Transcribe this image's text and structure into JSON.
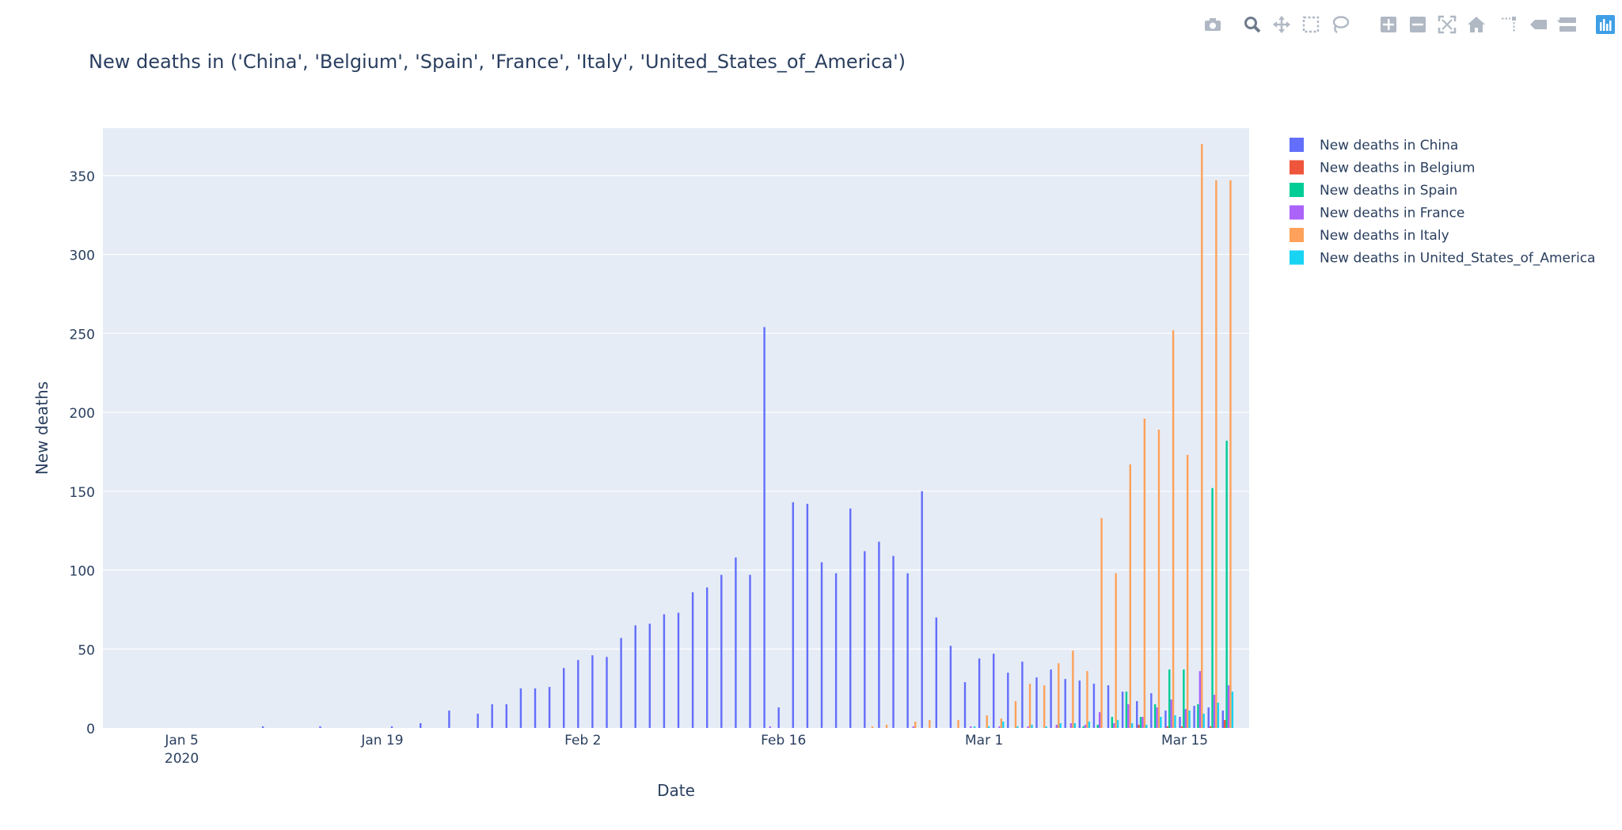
{
  "modebar": {
    "icons": [
      "camera-icon",
      "zoom-icon",
      "pan-icon",
      "box-select-icon",
      "lasso-select-icon",
      "zoom-in-icon",
      "zoom-out-icon",
      "autoscale-icon",
      "reset-axes-icon",
      "spike-lines-icon",
      "hover-closest-icon",
      "hover-compare-icon",
      "plotly-logo-icon"
    ],
    "active": "zoom-icon",
    "color": "#b0b8c4",
    "active_color": "#6e7b8b",
    "logo_color": "#3f9fe6"
  },
  "chart_data": {
    "type": "bar",
    "title": "New deaths in ('China', 'Belgium', 'Spain', 'France', 'Italy', 'United_States_of_America')",
    "xlabel": "Date",
    "ylabel": "New deaths",
    "ylim": [
      0,
      380
    ],
    "yticks": [
      0,
      50,
      100,
      150,
      200,
      250,
      300,
      350
    ],
    "xticks": [
      {
        "date": "2020-01-05",
        "label": "Jan 5",
        "sublabel": "2020"
      },
      {
        "date": "2020-01-19",
        "label": "Jan 19",
        "sublabel": ""
      },
      {
        "date": "2020-02-02",
        "label": "Feb 2",
        "sublabel": ""
      },
      {
        "date": "2020-02-16",
        "label": "Feb 16",
        "sublabel": ""
      },
      {
        "date": "2020-03-01",
        "label": "Mar 1",
        "sublabel": ""
      },
      {
        "date": "2020-03-15",
        "label": "Mar 15",
        "sublabel": ""
      }
    ],
    "xrange": [
      "2019-12-31",
      "2020-03-19"
    ],
    "grid": true,
    "legend_position": "top-right",
    "plot_bgcolor": "#e5ecf6",
    "dates": [
      "2019-12-31",
      "2020-01-01",
      "2020-01-02",
      "2020-01-03",
      "2020-01-04",
      "2020-01-05",
      "2020-01-06",
      "2020-01-07",
      "2020-01-08",
      "2020-01-09",
      "2020-01-10",
      "2020-01-11",
      "2020-01-12",
      "2020-01-13",
      "2020-01-14",
      "2020-01-15",
      "2020-01-16",
      "2020-01-17",
      "2020-01-18",
      "2020-01-19",
      "2020-01-20",
      "2020-01-21",
      "2020-01-22",
      "2020-01-23",
      "2020-01-24",
      "2020-01-25",
      "2020-01-26",
      "2020-01-27",
      "2020-01-28",
      "2020-01-29",
      "2020-01-30",
      "2020-01-31",
      "2020-02-01",
      "2020-02-02",
      "2020-02-03",
      "2020-02-04",
      "2020-02-05",
      "2020-02-06",
      "2020-02-07",
      "2020-02-08",
      "2020-02-09",
      "2020-02-10",
      "2020-02-11",
      "2020-02-12",
      "2020-02-13",
      "2020-02-14",
      "2020-02-15",
      "2020-02-16",
      "2020-02-17",
      "2020-02-18",
      "2020-02-19",
      "2020-02-20",
      "2020-02-21",
      "2020-02-22",
      "2020-02-23",
      "2020-02-24",
      "2020-02-25",
      "2020-02-26",
      "2020-02-27",
      "2020-02-28",
      "2020-02-29",
      "2020-03-01",
      "2020-03-02",
      "2020-03-03",
      "2020-03-04",
      "2020-03-05",
      "2020-03-06",
      "2020-03-07",
      "2020-03-08",
      "2020-03-09",
      "2020-03-10",
      "2020-03-11",
      "2020-03-12",
      "2020-03-13",
      "2020-03-14",
      "2020-03-15",
      "2020-03-16",
      "2020-03-17",
      "2020-03-18"
    ],
    "series": [
      {
        "name": "New deaths in China",
        "color": "#636efa",
        "values": [
          0,
          0,
          0,
          0,
          0,
          0,
          0,
          0,
          0,
          0,
          0,
          1,
          0,
          0,
          0,
          1,
          0,
          0,
          0,
          0,
          1,
          0,
          3,
          0,
          11,
          0,
          9,
          15,
          15,
          25,
          25,
          26,
          38,
          43,
          46,
          45,
          57,
          65,
          66,
          72,
          73,
          86,
          89,
          97,
          108,
          97,
          254,
          13,
          143,
          142,
          105,
          98,
          139,
          112,
          118,
          109,
          98,
          150,
          70,
          52,
          29,
          44,
          47,
          35,
          42,
          32,
          37,
          31,
          30,
          28,
          27,
          23,
          17,
          22,
          11,
          7,
          14,
          13,
          11
        ]
      },
      {
        "name": "New deaths in Belgium",
        "color": "#ef553b",
        "values": [
          0,
          0,
          0,
          0,
          0,
          0,
          0,
          0,
          0,
          0,
          0,
          0,
          0,
          0,
          0,
          0,
          0,
          0,
          0,
          0,
          0,
          0,
          0,
          0,
          0,
          0,
          0,
          0,
          0,
          0,
          0,
          0,
          0,
          0,
          0,
          0,
          0,
          0,
          0,
          0,
          0,
          0,
          0,
          0,
          0,
          0,
          0,
          0,
          0,
          0,
          0,
          0,
          0,
          0,
          0,
          0,
          0,
          0,
          0,
          0,
          0,
          0,
          0,
          0,
          0,
          0,
          0,
          0,
          0,
          0,
          0,
          0,
          2,
          0,
          1,
          1,
          0,
          1,
          5
        ]
      },
      {
        "name": "New deaths in Spain",
        "color": "#00cc96",
        "values": [
          0,
          0,
          0,
          0,
          0,
          0,
          0,
          0,
          0,
          0,
          0,
          0,
          0,
          0,
          0,
          0,
          0,
          0,
          0,
          0,
          0,
          0,
          0,
          0,
          0,
          0,
          0,
          0,
          0,
          0,
          0,
          0,
          0,
          0,
          0,
          0,
          0,
          0,
          0,
          0,
          0,
          0,
          0,
          0,
          0,
          0,
          0,
          0,
          0,
          0,
          0,
          0,
          0,
          0,
          0,
          0,
          0,
          0,
          0,
          0,
          0,
          0,
          0,
          0,
          0,
          0,
          0,
          0,
          1,
          2,
          7,
          23,
          7,
          15,
          37,
          37,
          15,
          152,
          182
        ]
      },
      {
        "name": "New deaths in France",
        "color": "#ab63fa",
        "values": [
          0,
          0,
          0,
          0,
          0,
          0,
          0,
          0,
          0,
          0,
          0,
          0,
          0,
          0,
          0,
          0,
          0,
          0,
          0,
          0,
          0,
          0,
          0,
          0,
          0,
          0,
          0,
          0,
          0,
          0,
          0,
          0,
          0,
          0,
          0,
          0,
          0,
          0,
          0,
          0,
          0,
          0,
          0,
          0,
          0,
          0,
          1,
          0,
          0,
          0,
          0,
          0,
          0,
          0,
          0,
          0,
          1,
          0,
          0,
          0,
          1,
          0,
          1,
          0,
          1,
          0,
          2,
          3,
          2,
          10,
          3,
          15,
          7,
          13,
          18,
          12,
          36,
          21,
          27
        ]
      },
      {
        "name": "New deaths in Italy",
        "color": "#ffa15a",
        "values": [
          0,
          0,
          0,
          0,
          0,
          0,
          0,
          0,
          0,
          0,
          0,
          0,
          0,
          0,
          0,
          0,
          0,
          0,
          0,
          0,
          0,
          0,
          0,
          0,
          0,
          0,
          0,
          0,
          0,
          0,
          0,
          0,
          0,
          0,
          0,
          0,
          0,
          0,
          0,
          0,
          0,
          0,
          0,
          0,
          0,
          0,
          0,
          0,
          0,
          0,
          0,
          0,
          0,
          1,
          2,
          0,
          4,
          5,
          0,
          5,
          0,
          8,
          6,
          17,
          28,
          27,
          41,
          49,
          36,
          133,
          98,
          167,
          196,
          189,
          252,
          173,
          370,
          347,
          347
        ]
      },
      {
        "name": "New deaths in United_States_of_America",
        "color": "#19d3f3",
        "values": [
          0,
          0,
          0,
          0,
          0,
          0,
          0,
          0,
          0,
          0,
          0,
          0,
          0,
          0,
          0,
          0,
          0,
          0,
          0,
          0,
          0,
          0,
          0,
          0,
          0,
          0,
          0,
          0,
          0,
          0,
          0,
          0,
          0,
          0,
          0,
          0,
          0,
          0,
          0,
          0,
          0,
          0,
          0,
          0,
          0,
          0,
          0,
          0,
          0,
          0,
          0,
          0,
          0,
          0,
          0,
          0,
          0,
          0,
          0,
          0,
          1,
          1,
          4,
          1,
          2,
          1,
          3,
          3,
          4,
          0,
          5,
          3,
          2,
          7,
          8,
          11,
          9,
          16,
          23
        ]
      }
    ]
  }
}
